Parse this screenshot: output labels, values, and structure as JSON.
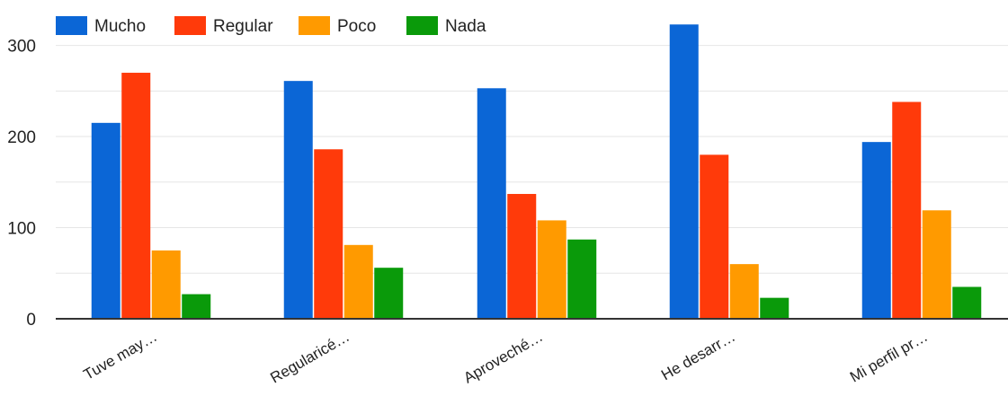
{
  "chart_data": {
    "type": "bar",
    "title": "",
    "xlabel": "",
    "ylabel": "",
    "categories": [
      "Tuve may…",
      "Regularicé…",
      "Aproveché…",
      "He desarr…",
      "Mi perfil pr…"
    ],
    "series": [
      {
        "name": "Mucho",
        "color": "#0b66d6",
        "values": [
          215,
          261,
          253,
          323,
          194
        ]
      },
      {
        "name": "Regular",
        "color": "#ff3a0a",
        "values": [
          270,
          186,
          137,
          180,
          238
        ]
      },
      {
        "name": "Poco",
        "color": "#ff9a00",
        "values": [
          75,
          81,
          108,
          60,
          119
        ]
      },
      {
        "name": "Nada",
        "color": "#0a9a0a",
        "values": [
          27,
          56,
          87,
          23,
          35
        ]
      }
    ],
    "ylim": [
      0,
      340
    ],
    "yticks": [
      0,
      100,
      200,
      300
    ],
    "grid": true,
    "legend_position": "top-left"
  }
}
